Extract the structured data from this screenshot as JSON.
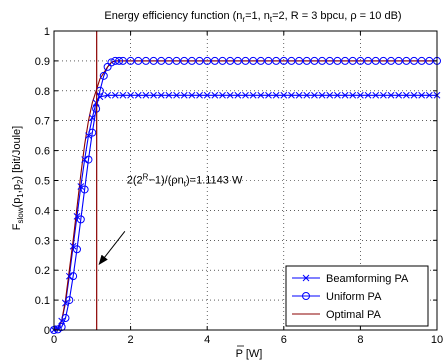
{
  "chart_data": {
    "type": "line",
    "title": "Energy efficiency function (n_r=1, n_t=2, R = 3 bpcu, ρ = 10 dB)",
    "title_parts": {
      "prefix": "Energy efficiency function (n",
      "sub1": "r",
      "mid1": "=1, n",
      "sub2": "t",
      "suffix": "=2, R = 3 bpcu, ρ = 10 dB)"
    },
    "xlabel": "P [W]",
    "ylabel": "F_slow(p_1,p_2) [bit/Joule]",
    "ylabel_parts": {
      "F": "F",
      "sub_slow": "slow",
      "open": "(p",
      "sub1": "1",
      "comma": ",p",
      "sub2": "2",
      "close": ") [bit/Joule]"
    },
    "xlim": [
      0,
      10
    ],
    "ylim": [
      0,
      1
    ],
    "xticks": [
      "0",
      "2",
      "4",
      "6",
      "8",
      "10"
    ],
    "yticks": [
      "0",
      "0.1",
      "0.2",
      "0.3",
      "0.4",
      "0.5",
      "0.6",
      "0.7",
      "0.8",
      "0.9",
      "1"
    ],
    "grid": true,
    "legend_position": "bottom-right",
    "series": [
      {
        "name": "Beamforming PA",
        "color": "#0000ff",
        "marker": "x",
        "x": [
          0,
          0.1,
          0.2,
          0.3,
          0.4,
          0.5,
          0.6,
          0.7,
          0.8,
          0.9,
          1.0,
          1.1,
          1.2,
          1.4,
          1.6,
          1.8,
          2.0,
          2.2,
          2.4,
          2.6,
          2.8,
          3.0,
          3.2,
          3.4,
          3.6,
          3.8,
          4.0,
          4.2,
          4.4,
          4.6,
          4.8,
          5.0,
          5.2,
          5.4,
          5.6,
          5.8,
          6.0,
          6.2,
          6.4,
          6.6,
          6.8,
          7.0,
          7.2,
          7.4,
          7.6,
          7.8,
          8.0,
          8.2,
          8.4,
          8.6,
          8.8,
          9.0,
          9.2,
          9.4,
          9.6,
          9.8,
          10.0
        ],
        "y": [
          0,
          0.005,
          0.03,
          0.09,
          0.18,
          0.28,
          0.38,
          0.48,
          0.57,
          0.65,
          0.71,
          0.76,
          0.78,
          0.785,
          0.785,
          0.785,
          0.785,
          0.785,
          0.785,
          0.785,
          0.785,
          0.785,
          0.785,
          0.785,
          0.785,
          0.785,
          0.785,
          0.785,
          0.785,
          0.785,
          0.785,
          0.785,
          0.785,
          0.785,
          0.785,
          0.785,
          0.785,
          0.785,
          0.785,
          0.785,
          0.785,
          0.785,
          0.785,
          0.785,
          0.785,
          0.785,
          0.785,
          0.785,
          0.785,
          0.785,
          0.785,
          0.785,
          0.785,
          0.785,
          0.785,
          0.785,
          0.785
        ]
      },
      {
        "name": "Uniform PA",
        "color": "#0000ff",
        "marker": "o",
        "x": [
          0,
          0.1,
          0.2,
          0.3,
          0.4,
          0.5,
          0.6,
          0.7,
          0.8,
          0.9,
          1.0,
          1.1,
          1.2,
          1.3,
          1.4,
          1.5,
          1.6,
          1.7,
          1.8,
          2.0,
          2.2,
          2.4,
          2.6,
          2.8,
          3.0,
          3.2,
          3.4,
          3.6,
          3.8,
          4.0,
          4.2,
          4.4,
          4.6,
          4.8,
          5.0,
          5.2,
          5.4,
          5.6,
          5.8,
          6.0,
          6.2,
          6.4,
          6.6,
          6.8,
          7.0,
          7.2,
          7.4,
          7.6,
          7.8,
          8.0,
          8.2,
          8.4,
          8.6,
          8.8,
          9.0,
          9.2,
          9.4,
          9.6,
          9.8,
          10.0
        ],
        "y": [
          0,
          0.002,
          0.01,
          0.04,
          0.1,
          0.18,
          0.27,
          0.37,
          0.47,
          0.57,
          0.66,
          0.74,
          0.8,
          0.85,
          0.88,
          0.895,
          0.9,
          0.9,
          0.9,
          0.9,
          0.9,
          0.9,
          0.9,
          0.9,
          0.9,
          0.9,
          0.9,
          0.9,
          0.9,
          0.9,
          0.9,
          0.9,
          0.9,
          0.9,
          0.9,
          0.9,
          0.9,
          0.9,
          0.9,
          0.9,
          0.9,
          0.9,
          0.9,
          0.9,
          0.9,
          0.9,
          0.9,
          0.9,
          0.9,
          0.9,
          0.9,
          0.9,
          0.9,
          0.9,
          0.9,
          0.9,
          0.9,
          0.9,
          0.9,
          0.9
        ]
      },
      {
        "name": "Optimal PA",
        "color": "#8b0000",
        "marker": "none",
        "x": [
          0,
          0.1,
          0.2,
          0.3,
          0.4,
          0.5,
          0.6,
          0.7,
          0.8,
          0.9,
          1.0,
          1.1,
          1.2,
          1.3,
          1.4,
          1.5,
          1.6,
          1.7,
          1.8,
          2.0,
          3.0,
          4.0,
          5.0,
          6.0,
          7.0,
          8.0,
          9.0,
          10.0
        ],
        "y": [
          0,
          0.004,
          0.03,
          0.1,
          0.2,
          0.3,
          0.41,
          0.52,
          0.62,
          0.7,
          0.76,
          0.8,
          0.84,
          0.86,
          0.88,
          0.895,
          0.9,
          0.9,
          0.9,
          0.9,
          0.9,
          0.9,
          0.9,
          0.9,
          0.9,
          0.9,
          0.9,
          0.9
        ]
      }
    ],
    "vertical_line": {
      "x": 1.1143,
      "color": "#8b0000"
    },
    "annotation": {
      "text_prefix": "2(2",
      "text_sup": "R",
      "text_suffix": "−1)/(ρn",
      "text_sub": "t",
      "text_end": ")=1.1143 W",
      "text_x": 1.9,
      "text_y": 0.49,
      "arrow_from": [
        1.85,
        0.33
      ],
      "arrow_to": [
        1.18,
        0.22
      ]
    }
  }
}
